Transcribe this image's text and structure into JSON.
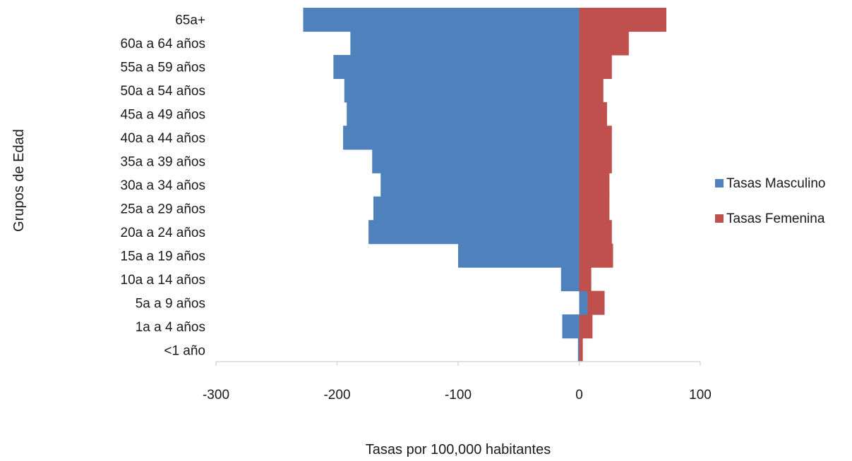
{
  "chart_data": {
    "type": "bar",
    "orientation": "horizontal",
    "stacked": true,
    "categories": [
      "<1 año",
      "1a a 4 años",
      "5a a 9 años",
      "10a  a 14 años",
      "15a  a 19 años",
      "20a a 24 años",
      "25a a 29 años",
      "30a a 34 años",
      "35a a 39 años",
      "40a a 44 años",
      "45a a 49 años",
      "50a a 54 años",
      "55a a 59 años",
      "60a a 64 años",
      "65a+"
    ],
    "series": [
      {
        "name": "Tasas Masculino",
        "color": "#4f81bd",
        "values": [
          -1,
          -14,
          7,
          -15,
          -100,
          -174,
          -170,
          -164,
          -171,
          -195,
          -192,
          -194,
          -203,
          -189,
          -228
        ]
      },
      {
        "name": "Tasas Femenina",
        "color": "#c0504d",
        "values": [
          3,
          11,
          14,
          10,
          28,
          27,
          25,
          25,
          27,
          27,
          23,
          20,
          27,
          41,
          72
        ]
      }
    ],
    "xlabel": "Tasas por 100,000 habitantes",
    "ylabel": "Grupos de Edad",
    "xlim": [
      -300,
      100
    ],
    "xticks": [
      -300,
      -200,
      -100,
      0,
      100
    ],
    "xtick_labels": [
      "-300",
      "-200",
      "-100",
      "0",
      "100"
    ],
    "grid": false,
    "legend_position": "right"
  }
}
